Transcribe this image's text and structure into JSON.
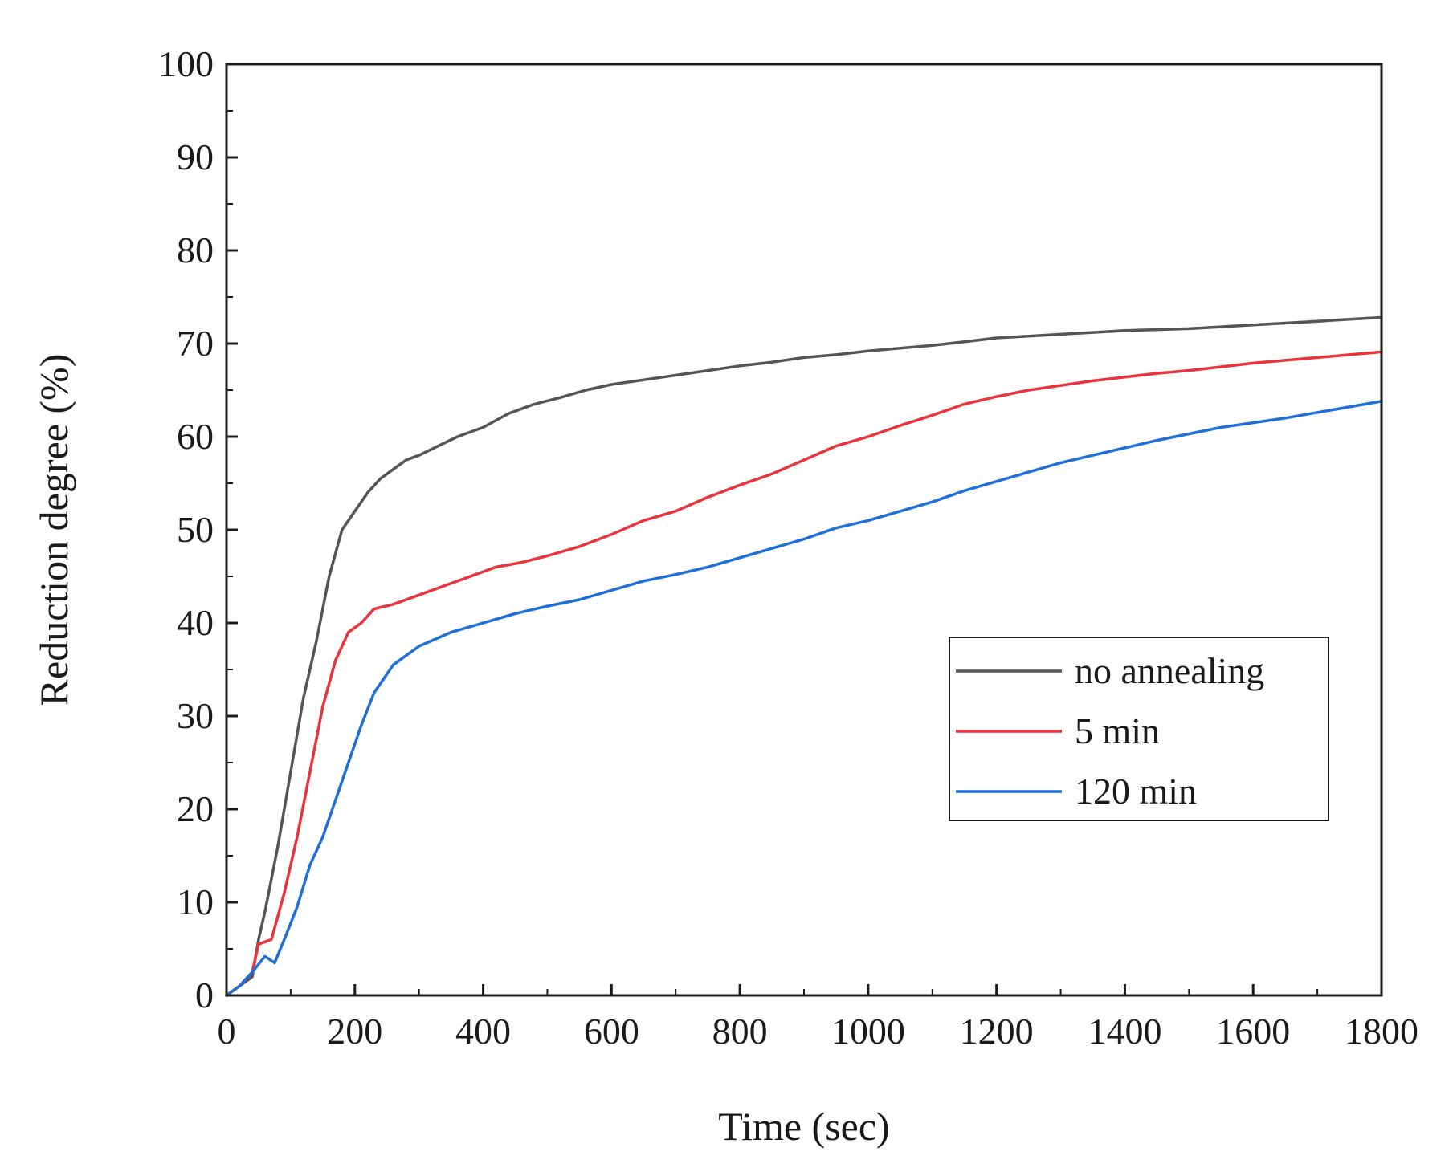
{
  "chart_data": {
    "type": "line",
    "title": "",
    "xlabel": "Time (sec)",
    "ylabel": "Reduction degree (%)",
    "xlim": [
      0,
      1800
    ],
    "ylim": [
      0,
      100
    ],
    "xticks": [
      0,
      200,
      400,
      600,
      800,
      1000,
      1200,
      1400,
      1600,
      1800
    ],
    "yticks": [
      0,
      10,
      20,
      30,
      40,
      50,
      60,
      70,
      80,
      90,
      100
    ],
    "grid": false,
    "legend_position": "right-center",
    "series": [
      {
        "name": "no annealing",
        "color": "#555555",
        "x": [
          0,
          20,
          40,
          50,
          60,
          80,
          100,
          120,
          140,
          160,
          180,
          200,
          220,
          240,
          260,
          280,
          300,
          330,
          360,
          400,
          440,
          480,
          520,
          560,
          600,
          640,
          680,
          720,
          760,
          800,
          850,
          900,
          950,
          1000,
          1050,
          1100,
          1150,
          1200,
          1250,
          1300,
          1350,
          1400,
          1450,
          1500,
          1550,
          1600,
          1650,
          1700,
          1750,
          1800
        ],
        "y": [
          0,
          1,
          2,
          6,
          9,
          16,
          24,
          32,
          38,
          45,
          50,
          52,
          54,
          55.5,
          56.5,
          57.5,
          58,
          59,
          60,
          61,
          62.5,
          63.5,
          64.2,
          65,
          65.6,
          66,
          66.4,
          66.8,
          67.2,
          67.6,
          68,
          68.5,
          68.8,
          69.2,
          69.5,
          69.8,
          70.2,
          70.6,
          70.8,
          71,
          71.2,
          71.4,
          71.5,
          71.6,
          71.8,
          72,
          72.2,
          72.4,
          72.6,
          72.8
        ]
      },
      {
        "name": "5 min",
        "color": "#e8343a",
        "x": [
          0,
          20,
          40,
          50,
          70,
          90,
          110,
          130,
          150,
          170,
          190,
          210,
          230,
          260,
          300,
          340,
          380,
          420,
          460,
          500,
          550,
          600,
          650,
          700,
          750,
          800,
          850,
          900,
          950,
          1000,
          1050,
          1100,
          1150,
          1200,
          1250,
          1300,
          1350,
          1400,
          1450,
          1500,
          1550,
          1600,
          1650,
          1700,
          1750,
          1800
        ],
        "y": [
          0,
          1,
          2.5,
          5.5,
          6,
          11,
          17,
          24,
          31,
          36,
          39,
          40,
          41.5,
          42,
          43,
          44,
          45,
          46,
          46.5,
          47.2,
          48.2,
          49.5,
          51,
          52,
          53.5,
          54.8,
          56,
          57.5,
          59,
          60,
          61.2,
          62.3,
          63.5,
          64.3,
          65,
          65.5,
          66,
          66.4,
          66.8,
          67.1,
          67.5,
          67.9,
          68.2,
          68.5,
          68.8,
          69.1
        ]
      },
      {
        "name": "120 min",
        "color": "#1f6fd9",
        "x": [
          0,
          20,
          40,
          60,
          75,
          90,
          110,
          130,
          150,
          170,
          190,
          210,
          230,
          260,
          300,
          350,
          400,
          450,
          500,
          550,
          600,
          650,
          700,
          750,
          800,
          850,
          900,
          950,
          1000,
          1050,
          1100,
          1150,
          1200,
          1250,
          1300,
          1350,
          1400,
          1450,
          1500,
          1550,
          1600,
          1650,
          1700,
          1750,
          1800
        ],
        "y": [
          0,
          1,
          2.5,
          4.2,
          3.5,
          6,
          9.5,
          14,
          17,
          21,
          25,
          29,
          32.5,
          35.5,
          37.5,
          39,
          40,
          41,
          41.8,
          42.5,
          43.5,
          44.5,
          45.2,
          46,
          47,
          48,
          49,
          50.2,
          51,
          52,
          53,
          54.2,
          55.2,
          56.2,
          57.2,
          58,
          58.8,
          59.6,
          60.3,
          61,
          61.5,
          62,
          62.6,
          63.2,
          63.8
        ]
      }
    ]
  }
}
